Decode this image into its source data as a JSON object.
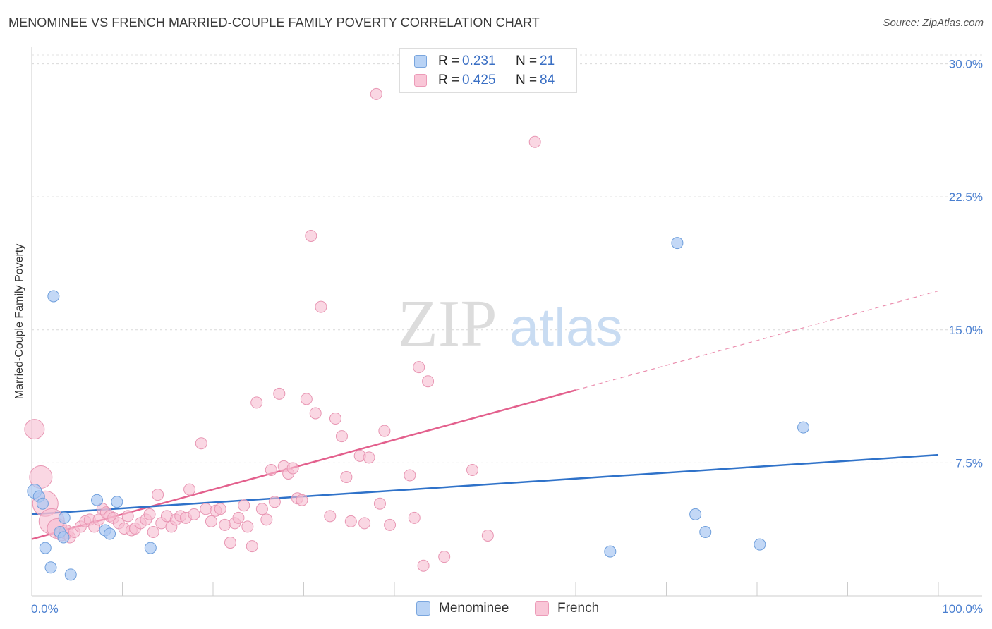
{
  "header": {
    "title": "MENOMINEE VS FRENCH MARRIED-COUPLE FAMILY POVERTY CORRELATION CHART",
    "source": "Source: ZipAtlas.com"
  },
  "watermark": {
    "zip": "ZIP",
    "atlas": "atlas"
  },
  "legend": {
    "rows": [
      {
        "r_label": "R =",
        "r_value": "0.231",
        "n_label": "N =",
        "n_value": "21"
      },
      {
        "r_label": "R =",
        "r_value": "0.425",
        "n_label": "N =",
        "n_value": "84"
      }
    ]
  },
  "bottom_legend": {
    "menominee": "Menominee",
    "french": "French"
  },
  "chart_data": {
    "type": "scatter",
    "title": "MENOMINEE VS FRENCH MARRIED-COUPLE FAMILY POVERTY CORRELATION CHART",
    "xlabel": "",
    "ylabel": "Married-Couple Family Poverty",
    "xlim": [
      0,
      100
    ],
    "ylim": [
      0,
      30.5
    ],
    "x_tick_labels": {
      "left": "0.0%",
      "right": "100.0%"
    },
    "y_ticks": [
      {
        "value": 7.5,
        "label": "7.5%"
      },
      {
        "value": 15.0,
        "label": "15.0%"
      },
      {
        "value": 22.5,
        "label": "22.5%"
      },
      {
        "value": 30.0,
        "label": "30.0%"
      }
    ],
    "colors": {
      "menominee_fill": "#a9c8f2",
      "menominee_stroke": "#6f9fdc",
      "menominee_line": "#2f72c9",
      "french_fill": "#f7bcd0",
      "french_stroke": "#e896b3",
      "french_line": "#e3608d"
    },
    "series": [
      {
        "name": "Menominee",
        "trend": {
          "x0": 0,
          "y0": 4.6,
          "x1": 100,
          "y1": 7.95
        },
        "points": [
          [
            0.3,
            5.9,
            10
          ],
          [
            0.8,
            5.6,
            8
          ],
          [
            1.2,
            5.2,
            8
          ],
          [
            2.4,
            16.9,
            8
          ],
          [
            1.5,
            2.7,
            8
          ],
          [
            2.1,
            1.6,
            8
          ],
          [
            3.1,
            3.6,
            8
          ],
          [
            3.5,
            3.3,
            8
          ],
          [
            3.6,
            4.4,
            8
          ],
          [
            4.3,
            1.2,
            8
          ],
          [
            7.2,
            5.4,
            8
          ],
          [
            8.1,
            3.7,
            8
          ],
          [
            8.6,
            3.5,
            8
          ],
          [
            9.4,
            5.3,
            8
          ],
          [
            13.1,
            2.7,
            8
          ],
          [
            63.8,
            2.5,
            8
          ],
          [
            71.2,
            19.9,
            8
          ],
          [
            73.2,
            4.6,
            8
          ],
          [
            74.3,
            3.6,
            8
          ],
          [
            80.3,
            2.9,
            8
          ],
          [
            85.1,
            9.5,
            8
          ]
        ]
      },
      {
        "name": "French",
        "trend": {
          "x0": 0,
          "y0": 3.2,
          "x1": 60,
          "y1": 11.6
        },
        "trend_extension": {
          "x0": 60,
          "y0": 11.6,
          "x1": 100,
          "y1": 17.2
        },
        "points": [
          [
            0.3,
            9.4,
            14
          ],
          [
            1.0,
            6.7,
            16
          ],
          [
            1.5,
            5.2,
            18
          ],
          [
            2.2,
            4.2,
            18
          ],
          [
            2.8,
            3.8,
            14
          ],
          [
            3.3,
            3.5,
            10
          ],
          [
            3.8,
            3.6,
            10
          ],
          [
            4.2,
            3.3,
            8
          ],
          [
            4.7,
            3.6,
            8
          ],
          [
            5.4,
            3.9,
            8
          ],
          [
            5.9,
            4.2,
            8
          ],
          [
            6.4,
            4.3,
            8
          ],
          [
            6.9,
            3.9,
            8
          ],
          [
            7.4,
            4.3,
            8
          ],
          [
            7.8,
            4.9,
            8
          ],
          [
            8.2,
            4.7,
            8
          ],
          [
            8.6,
            4.5,
            8
          ],
          [
            9.0,
            4.4,
            8
          ],
          [
            9.6,
            4.1,
            8
          ],
          [
            10.2,
            3.8,
            8
          ],
          [
            10.6,
            4.5,
            8
          ],
          [
            11.0,
            3.7,
            8
          ],
          [
            11.4,
            3.8,
            8
          ],
          [
            12.0,
            4.1,
            8
          ],
          [
            12.6,
            4.3,
            8
          ],
          [
            13.0,
            4.6,
            8
          ],
          [
            13.4,
            3.6,
            8
          ],
          [
            13.9,
            5.7,
            8
          ],
          [
            14.3,
            4.1,
            8
          ],
          [
            14.9,
            4.5,
            8
          ],
          [
            15.4,
            3.9,
            8
          ],
          [
            15.9,
            4.3,
            8
          ],
          [
            16.4,
            4.5,
            8
          ],
          [
            17.0,
            4.4,
            8
          ],
          [
            17.4,
            6.0,
            8
          ],
          [
            17.9,
            4.6,
            8
          ],
          [
            18.7,
            8.6,
            8
          ],
          [
            19.2,
            4.9,
            8
          ],
          [
            19.8,
            4.2,
            8
          ],
          [
            20.3,
            4.8,
            8
          ],
          [
            20.8,
            4.9,
            8
          ],
          [
            21.3,
            4.0,
            8
          ],
          [
            21.9,
            3.0,
            8
          ],
          [
            22.4,
            4.1,
            8
          ],
          [
            22.8,
            4.4,
            8
          ],
          [
            23.4,
            5.1,
            8
          ],
          [
            23.8,
            3.9,
            8
          ],
          [
            24.3,
            2.8,
            8
          ],
          [
            24.8,
            10.9,
            8
          ],
          [
            25.4,
            4.9,
            8
          ],
          [
            25.9,
            4.3,
            8
          ],
          [
            26.4,
            7.1,
            8
          ],
          [
            26.8,
            5.3,
            8
          ],
          [
            27.3,
            11.4,
            8
          ],
          [
            27.8,
            7.3,
            8
          ],
          [
            28.3,
            6.9,
            8
          ],
          [
            28.8,
            7.2,
            8
          ],
          [
            29.3,
            5.5,
            8
          ],
          [
            29.8,
            5.4,
            8
          ],
          [
            30.3,
            11.1,
            8
          ],
          [
            30.8,
            20.3,
            8
          ],
          [
            31.3,
            10.3,
            8
          ],
          [
            31.9,
            16.3,
            8
          ],
          [
            32.9,
            4.5,
            8
          ],
          [
            33.5,
            10.0,
            8
          ],
          [
            34.2,
            9.0,
            8
          ],
          [
            34.7,
            6.7,
            8
          ],
          [
            35.2,
            4.2,
            8
          ],
          [
            36.2,
            7.9,
            8
          ],
          [
            36.7,
            4.1,
            8
          ],
          [
            37.2,
            7.8,
            8
          ],
          [
            38.0,
            28.3,
            8
          ],
          [
            38.4,
            5.2,
            8
          ],
          [
            38.9,
            9.3,
            8
          ],
          [
            39.5,
            4.0,
            8
          ],
          [
            41.7,
            6.8,
            8
          ],
          [
            42.2,
            4.4,
            8
          ],
          [
            42.7,
            12.9,
            8
          ],
          [
            43.2,
            1.7,
            8
          ],
          [
            43.7,
            12.1,
            8
          ],
          [
            45.5,
            2.2,
            8
          ],
          [
            48.6,
            7.1,
            8
          ],
          [
            50.3,
            3.4,
            8
          ],
          [
            55.5,
            25.6,
            8
          ]
        ]
      }
    ]
  }
}
